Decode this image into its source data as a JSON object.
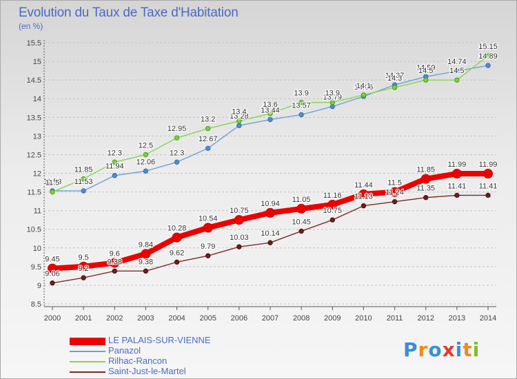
{
  "title": "Evolution du Taux de Taxe d'Habitation",
  "unit": "(en %)",
  "logo": {
    "text": "Proxiti",
    "letter_colors": [
      "#3a8fd6",
      "#f08a1c",
      "#3a8fd6",
      "#e23b2e",
      "#3a8fd6",
      "#f08a1c",
      "#7bbf2a"
    ]
  },
  "chart_data": {
    "type": "line",
    "x": [
      2000,
      2001,
      2002,
      2003,
      2004,
      2005,
      2006,
      2007,
      2008,
      2009,
      2010,
      2011,
      2012,
      2013,
      2014
    ],
    "ylim": [
      8.5,
      15.5
    ],
    "yticks": [
      8.5,
      9,
      9.5,
      10,
      10.5,
      11,
      11.5,
      12,
      12.5,
      13,
      13.5,
      14,
      14.5,
      15,
      15.5
    ],
    "ytick_labels": [
      "8.5",
      "9",
      "9.5",
      "10",
      "10.5",
      "11",
      "11.5",
      "12",
      "12.5",
      "13",
      "13.5",
      "14",
      "14.5",
      "15",
      "15.5"
    ],
    "grid": "horizontal dashed",
    "legend_position": "bottom-left",
    "series": [
      {
        "name": "LE PALAIS-SUR-VIENNE",
        "color": "#ee0000",
        "values": [
          9.45,
          9.5,
          9.6,
          9.84,
          10.28,
          10.54,
          10.75,
          10.94,
          11.05,
          11.16,
          11.44,
          11.5,
          11.85,
          11.99,
          11.99
        ],
        "labels": [
          "9.45",
          "9.5",
          "9.6",
          "9.84",
          "10.28",
          "10.54",
          "10.75",
          "10.94",
          "11.05",
          "11.16",
          "11.44",
          "11.5",
          "11.85",
          "11.99",
          "11.99"
        ]
      },
      {
        "name": "Panazol",
        "color": "#6fa0d4",
        "values": [
          11.53,
          11.53,
          11.94,
          12.06,
          12.3,
          12.67,
          13.28,
          13.44,
          13.57,
          13.79,
          14.06,
          14.37,
          14.59,
          14.74,
          14.89
        ],
        "labels": [
          "11.53",
          "11.53",
          "11.94",
          "12.06",
          "12.3",
          "12.67",
          "13.28",
          "13.44",
          "13.57",
          "13.79",
          "14.06",
          "14.37",
          "14.59",
          "14.74",
          "14.89"
        ]
      },
      {
        "name": "Rilhac-Rancon",
        "color": "#88d64a",
        "values": [
          11.5,
          11.85,
          12.3,
          12.5,
          12.95,
          13.2,
          13.4,
          13.6,
          13.9,
          13.9,
          14.1,
          14.3,
          14.5,
          14.5,
          15.15
        ],
        "labels": [
          "11.5",
          "11.85",
          "12.3",
          "12.5",
          "12.95",
          "13.2",
          "13.4",
          "13.6",
          "13.9",
          "13.9",
          "14.1",
          "14.3",
          "14.5",
          "14.5",
          "15.15"
        ]
      },
      {
        "name": "Saint-Just-le-Martel",
        "color": "#7a2a2a",
        "values": [
          9.06,
          9.2,
          9.38,
          9.38,
          9.62,
          9.79,
          10.03,
          10.14,
          10.45,
          10.75,
          11.13,
          11.24,
          11.35,
          11.41,
          11.41
        ],
        "labels": [
          "9.06",
          "9.2",
          "9.38",
          "9.38",
          "9.62",
          "9.79",
          "10.03",
          "10.14",
          "10.45",
          "10.75",
          "11.13",
          "11.24",
          "11.35",
          "11.41",
          "11.41"
        ]
      }
    ]
  }
}
